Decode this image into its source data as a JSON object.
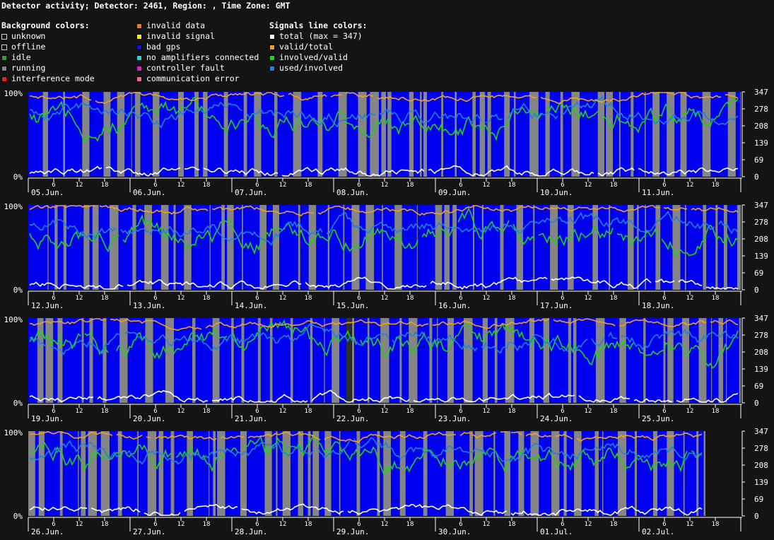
{
  "title": "Detector activity; Detector: 2461, Region: , Time Zone: GMT",
  "legend": {
    "background_head": "Background colors:",
    "background": [
      {
        "label": "unknown",
        "color": "#141414",
        "outline": true
      },
      {
        "label": "offline",
        "color": "#141414",
        "outline": true
      },
      {
        "label": "idle",
        "color": "#3a9a3a"
      },
      {
        "label": "running",
        "color": "#858585"
      },
      {
        "label": "interference mode",
        "color": "#e82020"
      }
    ],
    "background2": [
      {
        "label": "invalid data",
        "color": "#f07a1a"
      },
      {
        "label": "invalid signal",
        "color": "#f0f020"
      },
      {
        "label": "bad gps",
        "color": "#1010d8"
      },
      {
        "label": "no amplifiers connected",
        "color": "#20d8d8"
      },
      {
        "label": "controller fault",
        "color": "#e020c8"
      },
      {
        "label": "communication error",
        "color": "#e86a8a"
      }
    ],
    "signals_head": "Signals line colors:",
    "signals": [
      {
        "label": "total (max = 347)",
        "color": "#ffffff"
      },
      {
        "label": "valid/total",
        "color": "#f0a020"
      },
      {
        "label": "involved/valid",
        "color": "#20d020"
      },
      {
        "label": "used/involved",
        "color": "#2080e0"
      }
    ]
  },
  "chart_data": {
    "type": "line",
    "y_left_ticks": [
      "0%",
      "100%"
    ],
    "y_right_ticks": [
      "0",
      "69",
      "139",
      "208",
      "278",
      "347"
    ],
    "hour_ticks": [
      "6",
      "12",
      "18"
    ],
    "colors": {
      "idle": "#3a9a3a",
      "running": "#858585",
      "bad_gps": "#0000f0",
      "total": "#ffffff",
      "valid": "#f0a020",
      "involved": "#20d020",
      "used": "#2080e0"
    },
    "rows": [
      {
        "days": [
          "05.Jun.",
          "06.Jun.",
          "07.Jun.",
          "08.Jun.",
          "09.Jun.",
          "10.Jun.",
          "11.Jun."
        ]
      },
      {
        "days": [
          "12.Jun.",
          "13.Jun.",
          "14.Jun.",
          "15.Jun.",
          "16.Jun.",
          "17.Jun.",
          "18.Jun."
        ]
      },
      {
        "days": [
          "19.Jun.",
          "20.Jun.",
          "21.Jun.",
          "22.Jun.",
          "23.Jun.",
          "24.Jun.",
          "25.Jun."
        ]
      },
      {
        "days": [
          "26.Jun.",
          "27.Jun.",
          "28.Jun.",
          "29.Jun.",
          "30.Jun.",
          "01.Jul.",
          "02.Jul."
        ]
      }
    ],
    "series": [
      {
        "name": "total (max = 347)",
        "key": "total"
      },
      {
        "name": "valid/total",
        "key": "valid"
      },
      {
        "name": "involved/valid",
        "key": "involved"
      },
      {
        "name": "used/involved",
        "key": "used"
      }
    ]
  }
}
